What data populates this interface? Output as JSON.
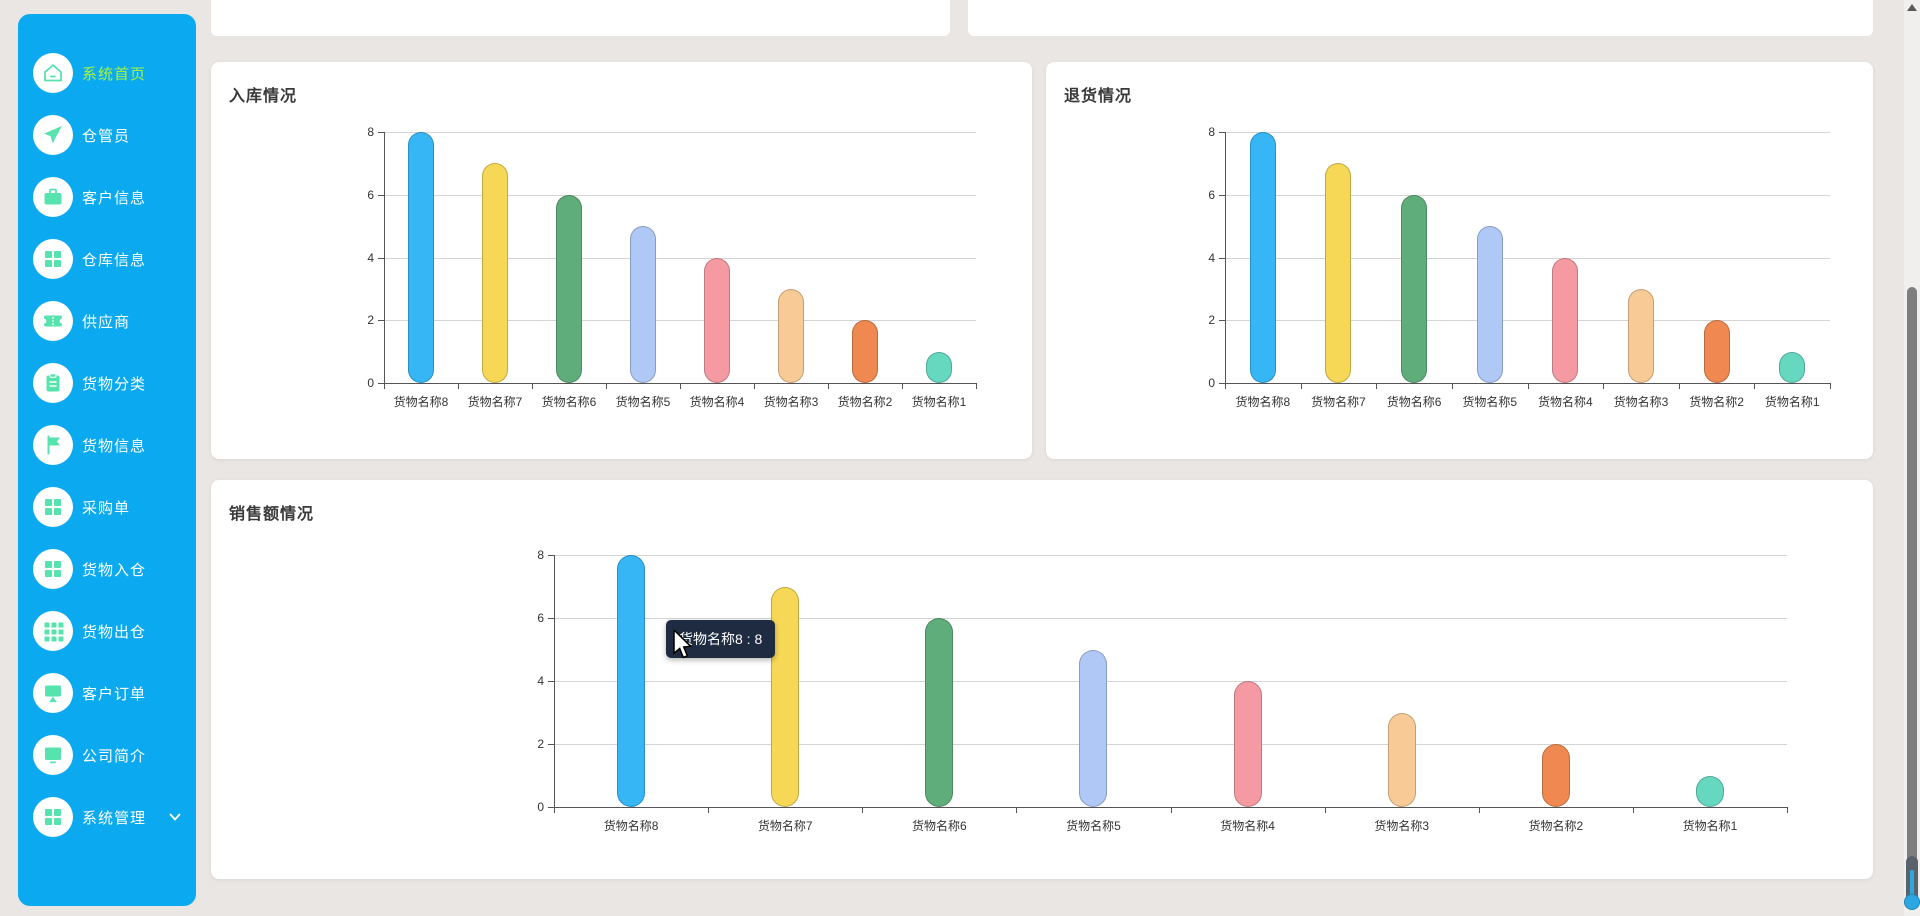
{
  "page": {
    "background": "#e9e6e3"
  },
  "sidebar": {
    "background": "#0baaf0",
    "icon_color": "#57e3ae",
    "active_text_color": "#a9f43a",
    "items": [
      {
        "label": "系统首页",
        "icon": "home-icon",
        "active": true
      },
      {
        "label": "仓管员",
        "icon": "send-icon",
        "active": false
      },
      {
        "label": "客户信息",
        "icon": "briefcase-icon",
        "active": false
      },
      {
        "label": "仓库信息",
        "icon": "grid-icon",
        "active": false
      },
      {
        "label": "供应商",
        "icon": "ticket-icon",
        "active": false
      },
      {
        "label": "货物分类",
        "icon": "clipboard-icon",
        "active": false
      },
      {
        "label": "货物信息",
        "icon": "flag-icon",
        "active": false
      },
      {
        "label": "采购单",
        "icon": "grid-icon",
        "active": false
      },
      {
        "label": "货物入仓",
        "icon": "grid-icon",
        "active": false
      },
      {
        "label": "货物出仓",
        "icon": "grid9-icon",
        "active": false
      },
      {
        "label": "客户订单",
        "icon": "monitor-stand-icon",
        "active": false
      },
      {
        "label": "公司简介",
        "icon": "monitor-icon",
        "active": false
      },
      {
        "label": "系统管理",
        "icon": "grid-icon",
        "active": false,
        "expandable": true,
        "chevron": "chevron-down-icon"
      }
    ]
  },
  "chart_data": [
    {
      "type": "bar",
      "title": "入库情况",
      "categories": [
        "货物名称8",
        "货物名称7",
        "货物名称6",
        "货物名称5",
        "货物名称4",
        "货物名称3",
        "货物名称2",
        "货物名称1"
      ],
      "values": [
        8,
        7,
        6,
        5,
        4,
        3,
        2,
        1
      ],
      "xlabel": "",
      "ylabel": "",
      "ylim": [
        0,
        8
      ],
      "yticks": [
        0,
        2,
        4,
        6,
        8
      ],
      "grid": true,
      "legend": "none",
      "bar_colors": [
        "#37b6f6",
        "#f6d756",
        "#60ad7c",
        "#afc8f6",
        "#f59aa2",
        "#f8cb96",
        "#ef8951",
        "#67d8c0"
      ]
    },
    {
      "type": "bar",
      "title": "退货情况",
      "categories": [
        "货物名称8",
        "货物名称7",
        "货物名称6",
        "货物名称5",
        "货物名称4",
        "货物名称3",
        "货物名称2",
        "货物名称1"
      ],
      "values": [
        8,
        7,
        6,
        5,
        4,
        3,
        2,
        1
      ],
      "xlabel": "",
      "ylabel": "",
      "ylim": [
        0,
        8
      ],
      "yticks": [
        0,
        2,
        4,
        6,
        8
      ],
      "grid": true,
      "legend": "none",
      "bar_colors": [
        "#37b6f6",
        "#f6d756",
        "#60ad7c",
        "#afc8f6",
        "#f59aa2",
        "#f8cb96",
        "#ef8951",
        "#67d8c0"
      ]
    },
    {
      "type": "bar",
      "title": "销售额情况",
      "categories": [
        "货物名称8",
        "货物名称7",
        "货物名称6",
        "货物名称5",
        "货物名称4",
        "货物名称3",
        "货物名称2",
        "货物名称1"
      ],
      "values": [
        8,
        7,
        6,
        5,
        4,
        3,
        2,
        1
      ],
      "xlabel": "",
      "ylabel": "",
      "ylim": [
        0,
        8
      ],
      "yticks": [
        0,
        2,
        4,
        6,
        8
      ],
      "grid": true,
      "legend": "none",
      "bar_colors": [
        "#37b6f6",
        "#f6d756",
        "#60ad7c",
        "#afc8f6",
        "#f59aa2",
        "#f8cb96",
        "#ef8951",
        "#67d8c0"
      ],
      "hovered_bar": "货物名称8"
    }
  ],
  "tooltip": {
    "text": "货物名称8 : 8",
    "background": "#1e2b40"
  }
}
